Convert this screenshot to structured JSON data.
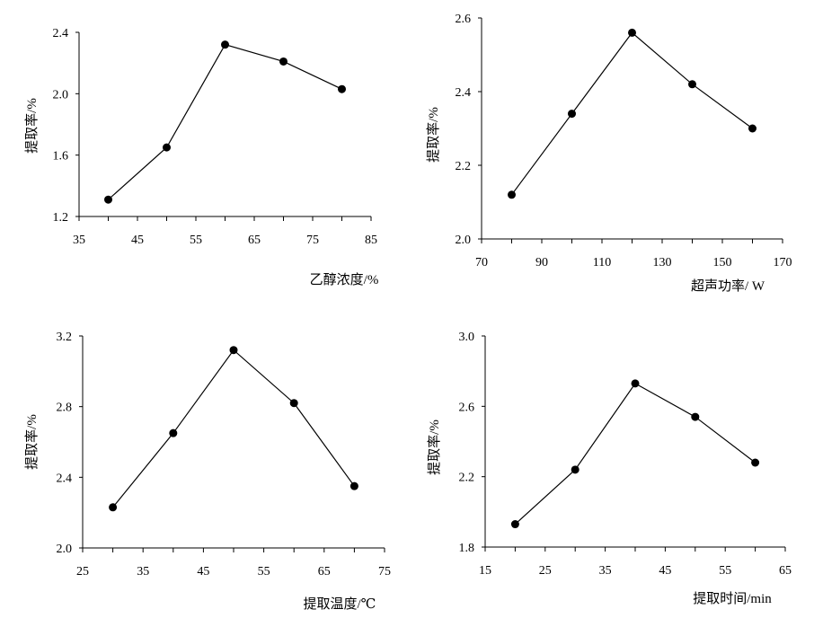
{
  "chart_data": [
    {
      "type": "line",
      "xlabel": "乙醇浓度/%",
      "ylabel": "提取率/%",
      "xlim": [
        35,
        85
      ],
      "ylim": [
        1.2,
        2.4
      ],
      "xticks": [
        "35",
        "45",
        "55",
        "65",
        "75",
        "85"
      ],
      "yticks": [
        "1.2",
        "1.6",
        "2.0",
        "2.4"
      ],
      "x": [
        40,
        50,
        60,
        70,
        80
      ],
      "values": [
        1.31,
        1.65,
        2.32,
        2.21,
        2.03
      ],
      "grid": false
    },
    {
      "type": "line",
      "xlabel": "超声功率/ W",
      "ylabel": "提取率/%",
      "xlim": [
        70,
        170
      ],
      "ylim": [
        2.0,
        2.6
      ],
      "xticks": [
        "70",
        "90",
        "110",
        "130",
        "150",
        "170"
      ],
      "yticks": [
        "2.0",
        "2.2",
        "2.4",
        "2.6"
      ],
      "x": [
        80,
        100,
        120,
        140,
        160
      ],
      "values": [
        2.12,
        2.34,
        2.56,
        2.42,
        2.3
      ],
      "grid": false
    },
    {
      "type": "line",
      "xlabel": "提取温度/℃",
      "ylabel": "提取率/%",
      "xlim": [
        25,
        75
      ],
      "ylim": [
        2.0,
        3.2
      ],
      "xticks": [
        "25",
        "35",
        "45",
        "55",
        "65",
        "75"
      ],
      "yticks": [
        "2.0",
        "2.4",
        "2.8",
        "3.2"
      ],
      "x": [
        30,
        40,
        50,
        60,
        70
      ],
      "values": [
        2.23,
        2.65,
        3.12,
        2.82,
        2.35
      ],
      "grid": false
    },
    {
      "type": "line",
      "xlabel": "提取时间/min",
      "ylabel": "提取率/%",
      "xlim": [
        15,
        65
      ],
      "ylim": [
        1.8,
        3.0
      ],
      "xticks": [
        "15",
        "25",
        "35",
        "45",
        "55",
        "65"
      ],
      "yticks": [
        "1.8",
        "2.2",
        "2.6",
        "3.0"
      ],
      "x": [
        20,
        30,
        40,
        50,
        60
      ],
      "values": [
        1.93,
        2.24,
        2.73,
        2.54,
        2.28
      ],
      "grid": false
    }
  ]
}
